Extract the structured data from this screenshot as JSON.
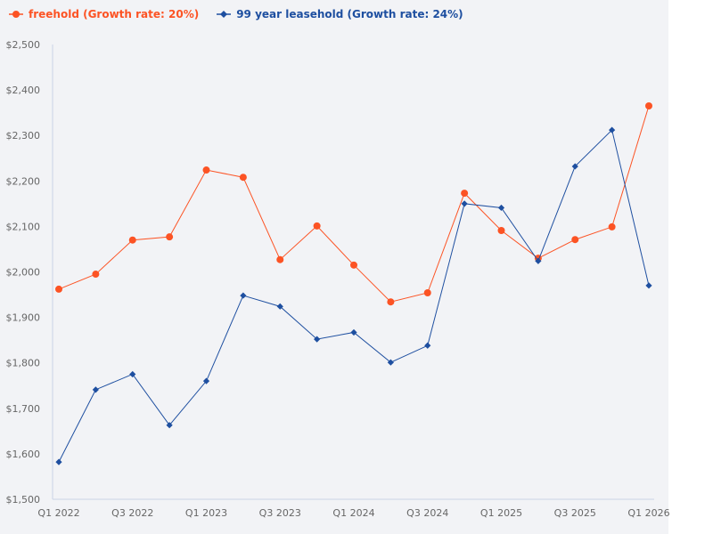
{
  "chart_data": {
    "type": "line",
    "title": "",
    "xlabel": "",
    "ylabel": "",
    "ylim": [
      1500,
      2500
    ],
    "grid": false,
    "legend_position": "top-left",
    "y_ticks": [
      "$1,500",
      "$1,600",
      "$1,700",
      "$1,800",
      "$1,900",
      "$2,000",
      "$2,100",
      "$2,200",
      "$2,300",
      "$2,400",
      "$2,500"
    ],
    "y_tick_values": [
      1500,
      1600,
      1700,
      1800,
      1900,
      2000,
      2100,
      2200,
      2300,
      2400,
      2500
    ],
    "x": [
      "Q1 2022",
      "Q2 2022",
      "Q3 2022",
      "Q4 2022",
      "Q1 2023",
      "Q2 2023",
      "Q3 2023",
      "Q4 2023",
      "Q1 2024",
      "Q2 2024",
      "Q3 2024",
      "Q4 2024",
      "Q1 2025",
      "Q2 2025",
      "Q3 2025",
      "Q4 2025",
      "Q1 2026"
    ],
    "x_tick_labels_shown": [
      "Q1 2022",
      "Q3 2022",
      "Q1 2023",
      "Q3 2023",
      "Q1 2024",
      "Q3 2024",
      "Q1 2025",
      "Q3 2025",
      "Q1 2026"
    ],
    "series": [
      {
        "name": "freehold (Growth rate: 20%)",
        "color": "#fc5324",
        "marker": "circle",
        "values": [
          1962,
          1995,
          2070,
          2077,
          2224,
          2208,
          2027,
          2101,
          2015,
          1934,
          1954,
          2173,
          2091,
          2030,
          2071,
          2099,
          2365
        ]
      },
      {
        "name": "99 year leasehold (Growth rate: 24%)",
        "color": "#1e4fa0",
        "marker": "diamond",
        "values": [
          1582,
          1741,
          1775,
          1663,
          1760,
          1948,
          1924,
          1852,
          1867,
          1801,
          1838,
          2150,
          2141,
          2024,
          2232,
          2312,
          1970
        ]
      }
    ]
  },
  "legend": {
    "freehold_label": "freehold (Growth rate: 20%)",
    "leasehold_label": "99 year leasehold (Growth rate: 24%)"
  },
  "colors": {
    "freehold": "#fc5324",
    "leasehold": "#1e4fa0",
    "axis": "#c9d3e6",
    "background": "#f2f3f6"
  }
}
